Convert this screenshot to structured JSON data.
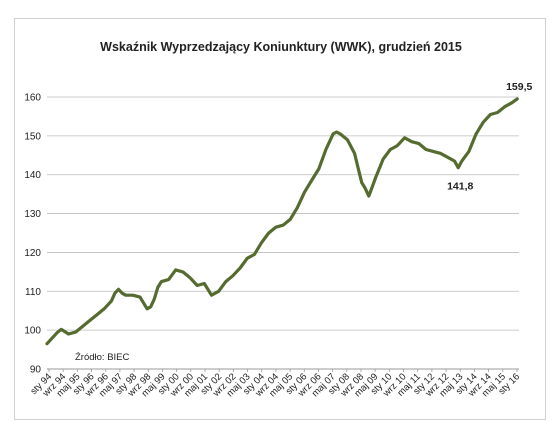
{
  "chart_data": {
    "type": "line",
    "title": "Wskaźnik Wyprzedzający Koniunktury (WWK),  grudzień 2015",
    "source": "Źródło: BIEC",
    "xlabel": "",
    "ylabel": "",
    "ylim": [
      90,
      160
    ],
    "yticks": [
      90,
      100,
      110,
      120,
      130,
      140,
      150,
      160
    ],
    "x_tick_labels": [
      "sty 94",
      "wrz 94",
      "maj 95",
      "sty 96",
      "wrz 96",
      "maj 97",
      "sty 98",
      "wrz 98",
      "maj 99",
      "sty 00",
      "wrz 00",
      "maj 01",
      "sty 02",
      "wrz 02",
      "maj 03",
      "sty 04",
      "wrz 04",
      "maj 05",
      "sty 06",
      "wrz 06",
      "maj 07",
      "sty 08",
      "wrz 08",
      "maj 09",
      "sty 10",
      "wrz 10",
      "maj 11",
      "sty 12",
      "wrz 12",
      "maj 13",
      "sty 14",
      "wrz 14",
      "maj 15",
      "sty 16"
    ],
    "grid": "horizontal",
    "line_color": "#556b2f",
    "series": [
      {
        "name": "",
        "x": [
          "1994-01",
          "1994-07",
          "1994-09",
          "1995-01",
          "1995-05",
          "1995-09",
          "1996-01",
          "1996-05",
          "1996-09",
          "1997-01",
          "1997-03",
          "1997-05",
          "1997-07",
          "1997-09",
          "1998-01",
          "1998-05",
          "1998-09",
          "1998-11",
          "1999-01",
          "1999-03",
          "1999-05",
          "1999-09",
          "2000-01",
          "2000-05",
          "2000-09",
          "2001-01",
          "2001-05",
          "2001-09",
          "2002-01",
          "2002-05",
          "2002-09",
          "2003-01",
          "2003-05",
          "2003-09",
          "2004-01",
          "2004-05",
          "2004-09",
          "2005-01",
          "2005-05",
          "2005-09",
          "2006-01",
          "2006-05",
          "2006-09",
          "2007-01",
          "2007-05",
          "2007-07",
          "2007-09",
          "2008-01",
          "2008-05",
          "2008-09",
          "2008-11",
          "2009-01",
          "2009-03",
          "2009-05",
          "2009-09",
          "2010-01",
          "2010-05",
          "2010-09",
          "2011-01",
          "2011-05",
          "2011-09",
          "2012-01",
          "2012-05",
          "2012-09",
          "2013-01",
          "2013-03",
          "2013-05",
          "2013-09",
          "2014-01",
          "2014-05",
          "2014-09",
          "2015-01",
          "2015-05",
          "2015-09",
          "2015-12"
        ],
        "values": [
          96.5,
          99.5,
          100.2,
          99.0,
          99.5,
          101.0,
          102.5,
          104.0,
          105.5,
          107.5,
          109.5,
          110.5,
          109.5,
          109.0,
          109.0,
          108.5,
          105.5,
          106.0,
          108.0,
          111.0,
          112.5,
          113.0,
          115.5,
          115.0,
          113.5,
          111.5,
          112.0,
          109.0,
          110.0,
          112.5,
          114.0,
          116.0,
          118.5,
          119.5,
          122.5,
          125.0,
          126.5,
          127.0,
          128.5,
          131.5,
          135.5,
          138.5,
          141.5,
          146.5,
          150.5,
          151.0,
          150.5,
          149.0,
          145.5,
          138.0,
          136.5,
          134.5,
          137.0,
          139.5,
          144.0,
          146.5,
          147.5,
          149.5,
          148.5,
          148.0,
          146.5,
          146.0,
          145.5,
          144.5,
          143.5,
          141.8,
          143.5,
          146.0,
          150.5,
          153.5,
          155.5,
          156.0,
          157.5,
          158.5,
          159.5
        ]
      }
    ],
    "annotations": [
      {
        "label": "159,5",
        "x": "2015-12",
        "y": 159.5
      },
      {
        "label": "141,8",
        "x": "2013-03",
        "y": 141.8
      }
    ]
  }
}
